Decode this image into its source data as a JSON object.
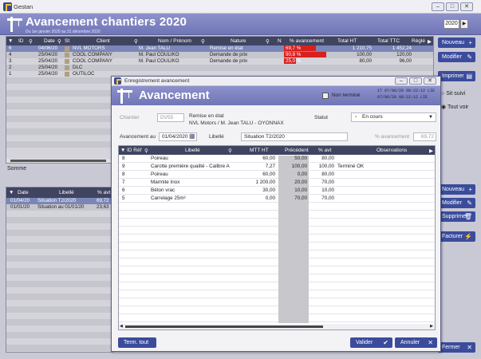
{
  "window": {
    "title": "Gestan",
    "year": "2020"
  },
  "banner": {
    "title": "Avancement chantiers 2020",
    "subtitle": "Du 1er janvier 2020 au 31 décembre 2020"
  },
  "main_grid": {
    "columns": [
      "ID",
      "Date",
      "St",
      "Client",
      "Nom / Prénom",
      "Nature",
      "N",
      "% avancement",
      "Total HT",
      "Total TTC",
      "Réglé"
    ],
    "rows": [
      {
        "id": "6",
        "date": "04/06/20",
        "client": "NVL MOTORS",
        "nom": "M. Jean TALU",
        "nature": "Remise en état",
        "pct": "69,7 %",
        "pct_fill": 0.697,
        "ht": "1 210,75",
        "ttc": "1 452,24",
        "selected": true
      },
      {
        "id": "4",
        "date": "25/04/20",
        "client": "COOL COMPANY",
        "nom": "M. Paul COULIKO",
        "nature": "Demande de prix",
        "pct": "90,8 %",
        "pct_fill": 0.908,
        "ht": "100,00",
        "ttc": "120,00",
        "selected": false
      },
      {
        "id": "3",
        "date": "25/04/20",
        "client": "COOL COMPANY",
        "nom": "M. Paul COULIKO",
        "nature": "Demande de prix",
        "pct": "25,0 %",
        "pct_fill": 0.25,
        "ht": "80,00",
        "ttc": "96,00",
        "selected": false
      },
      {
        "id": "2",
        "date": "25/04/20",
        "client": "DLC",
        "nom": "",
        "nature": "",
        "pct": "",
        "pct_fill": 0,
        "ht": "",
        "ttc": "",
        "selected": false
      },
      {
        "id": "1",
        "date": "25/04/20",
        "client": "OUTILOC",
        "nom": "",
        "nature": "",
        "pct": "",
        "pct_fill": 0,
        "ht": "",
        "ttc": "",
        "selected": false
      }
    ],
    "sum_label": "Somme"
  },
  "sub_grid": {
    "columns": [
      "Date",
      "Libellé",
      "% avt"
    ],
    "rows": [
      {
        "date": "01/04/20",
        "libelle": "Situation T2/2020",
        "pct": "69,72",
        "selected": true
      },
      {
        "date": "01/01/20",
        "libelle": "Situation au 01/01/20",
        "pct": "23,63",
        "selected": false
      }
    ]
  },
  "right_panel": {
    "nouveau": "Nouveau",
    "modifier": "Modifier",
    "imprimer": "Imprimer",
    "radio_sit_suivi": "Sit suivi",
    "radio_tout_voir": "Tout voir",
    "nouveau2": "Nouveau",
    "modifier2": "Modifier",
    "supprimer": "Supprimer",
    "facturer": "Facturer",
    "fermer": "Fermer"
  },
  "dialog": {
    "title": "Enregistrement avancement",
    "banner": "Avancement",
    "non_termine": "Non terminé",
    "meta_line1": "17   07/06/20 08:22:12  LIE",
    "meta_line2": "     07/06/20 08:22:12  LIE",
    "chantier_label": "Chantier",
    "chantier_code": "DV55",
    "chantier_line1": "Remise en état",
    "chantier_line2": "NVL Motors / M. Jean TALU - OYONNAX",
    "statut_label": "Statut",
    "statut_value": "En cours",
    "avancement_au_label": "Avancement au",
    "avancement_au_value": "01/04/2020",
    "libelle_label": "Libellé",
    "libelle_value": "Situation T2/2020",
    "pct_avancement_label": "% avancement",
    "pct_avancement_value": "69,72",
    "grid_columns": [
      "ID Réf",
      "Libellé",
      "MTT HT",
      "Précédent",
      "% avt",
      "Observations"
    ],
    "grid_rows": [
      {
        "id": "8",
        "libelle": "Poireau",
        "mtt": "60,00",
        "prec": "50,00",
        "avt": "80,00",
        "obs": ""
      },
      {
        "id": "9",
        "libelle": "Carotte première qualité - Calibre A",
        "mtt": "7,27",
        "prec": "100,00",
        "avt": "100,00",
        "obs": "Terminé OK"
      },
      {
        "id": "8",
        "libelle": "Poireau",
        "mtt": "60,00",
        "prec": "0,00",
        "avt": "80,00",
        "obs": ""
      },
      {
        "id": "7",
        "libelle": "Marmite Inox",
        "mtt": "1 200,00",
        "prec": "20,00",
        "avt": "70,00",
        "obs": ""
      },
      {
        "id": "6",
        "libelle": "Béton vrac",
        "mtt": "30,00",
        "prec": "10,00",
        "avt": "10,00",
        "obs": ""
      },
      {
        "id": "5",
        "libelle": "Carrelage 25m²",
        "mtt": "0,00",
        "prec": "70,00",
        "avt": "70,00",
        "obs": ""
      }
    ],
    "term_tout": "Term. tout",
    "valider": "Valider",
    "annuler": "Annuler"
  }
}
